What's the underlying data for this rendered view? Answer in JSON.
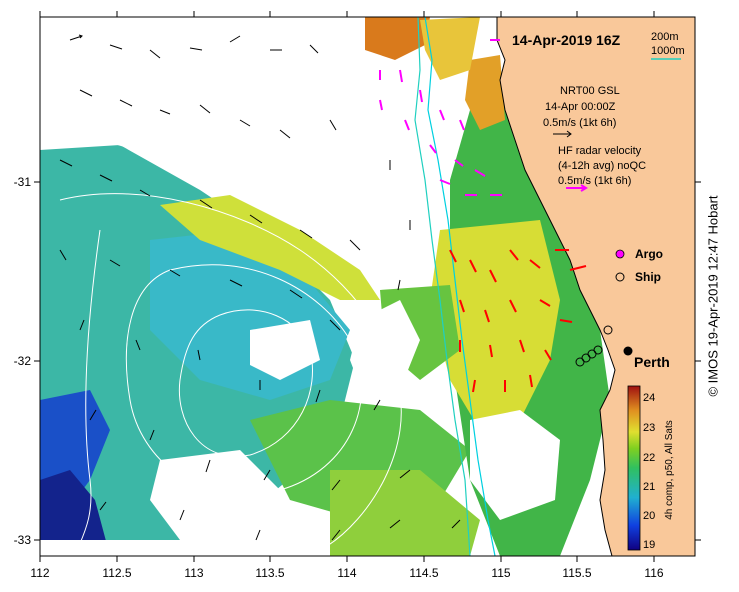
{
  "title": "14-Apr-2019 16Z",
  "isobath_legend": {
    "shallow": "200m",
    "deep": "1000m"
  },
  "gsl_box": {
    "line1": "NRT00 GSL",
    "line2": "14-Apr 00:00Z",
    "line3": "0.5m/s (1kt 6h)"
  },
  "radar_box": {
    "line1": "HF radar velocity",
    "line2": "(4-12h avg) noQC",
    "line3": "0.5m/s (1kt 6h)"
  },
  "legend": {
    "argo": "Argo",
    "ship": "Ship"
  },
  "place": "Perth",
  "x_ticks": [
    "112",
    "112.5",
    "113",
    "113.5",
    "114",
    "114.5",
    "115",
    "115.5",
    "116"
  ],
  "y_ticks": [
    "-31",
    "-32",
    "-33"
  ],
  "colorbar": {
    "label": "4h comp, p50, All Sats",
    "ticks": [
      "24",
      "23",
      "22",
      "21",
      "20",
      "19"
    ]
  },
  "credit": "© IMOS 19-Apr-2019 12:47 Hobart",
  "colors": {
    "land": "#f9c89a",
    "coast_line": "#000000",
    "isobath_200": "#00d0e0",
    "isobath_1000": "#20d0c0",
    "radar": "#ff00ff",
    "current": "#ff0000"
  }
}
